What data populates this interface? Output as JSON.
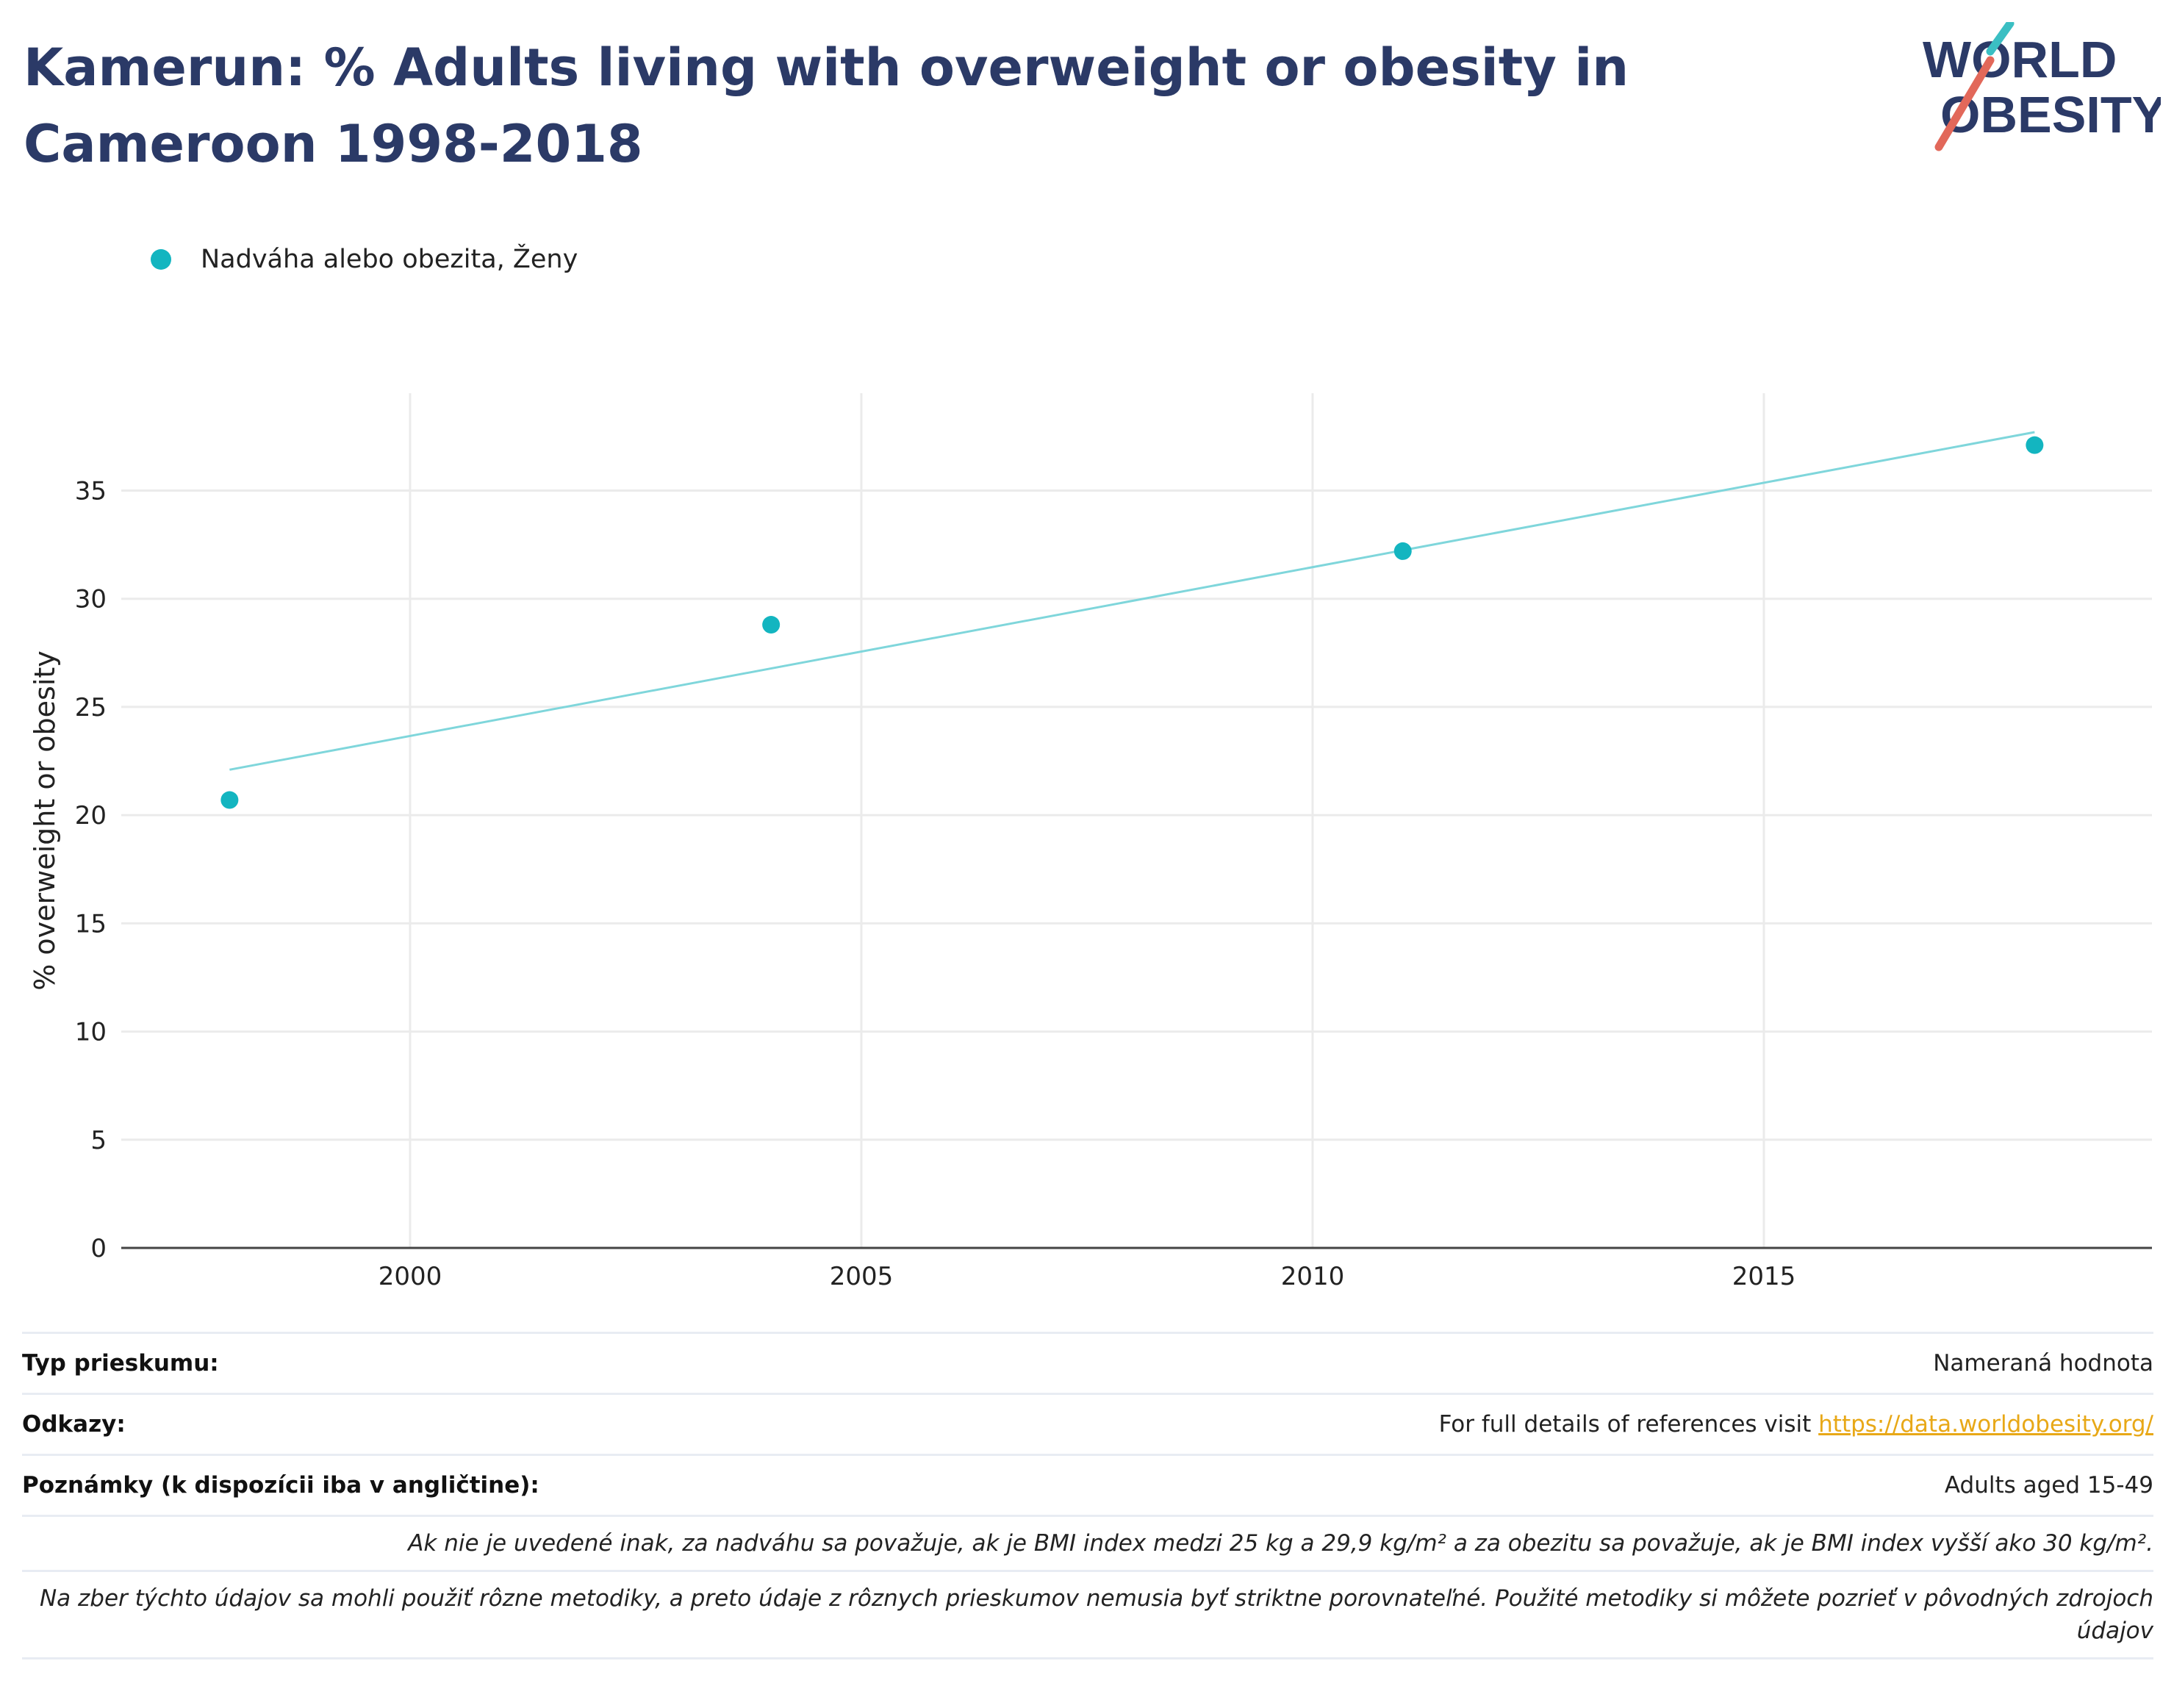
{
  "header": {
    "title": "Kamerun: % Adults living with overweight or obesity in Cameroon 1998-2018"
  },
  "logo": {
    "line1": "WORLD",
    "line2": "OBESITY",
    "accent_teal": "#3bbfc3",
    "accent_red": "#e2685a",
    "text_color": "#2b3a67"
  },
  "legend": {
    "label": "Nadváha alebo obezita, Ženy",
    "color": "#13b5c0"
  },
  "chart_data": {
    "type": "scatter",
    "title": "",
    "ylabel": "% overweight or obesity",
    "xlabel": "",
    "xlim": [
      1996.8,
      2019.3
    ],
    "ylim": [
      0,
      39.5
    ],
    "x_ticks": [
      2000,
      2005,
      2010,
      2015
    ],
    "y_ticks": [
      0,
      5,
      10,
      15,
      20,
      25,
      30,
      35
    ],
    "grid": true,
    "legend_position": "top-left",
    "series": [
      {
        "name": "Nadváha alebo obezita, Ženy",
        "color": "#13b5c0",
        "x": [
          1998,
          2004,
          2011,
          2018
        ],
        "y": [
          20.7,
          28.8,
          32.2,
          37.1
        ]
      }
    ],
    "trendline": {
      "color": "#7fd6db",
      "x": [
        1998,
        2018
      ],
      "y": [
        22.1,
        37.7
      ]
    }
  },
  "footer": {
    "survey_type_label": "Typ prieskumu:",
    "survey_type_value": "Nameraná hodnota",
    "references_label": "Odkazy:",
    "references_text": "For full details of references visit ",
    "references_link": "https://data.worldobesity.org/",
    "notes_label": "Poznámky (k dispozícii iba v angličtine):",
    "notes_value": "Adults aged 15-49",
    "definition_note": "Ak nie je uvedené inak, za nadváhu sa považuje, ak je BMI index medzi 25 kg a 29,9 kg/m² a za obezitu sa považuje, ak je BMI index vyšší ako 30 kg/m².",
    "methodology_note": "Na zber týchto údajov sa mohli použiť rôzne metodiky, a preto údaje z rôznych prieskumov nemusia byť striktne porovnateľné. Použité metodiky si môžete pozrieť v pôvodných zdrojoch údajov"
  }
}
